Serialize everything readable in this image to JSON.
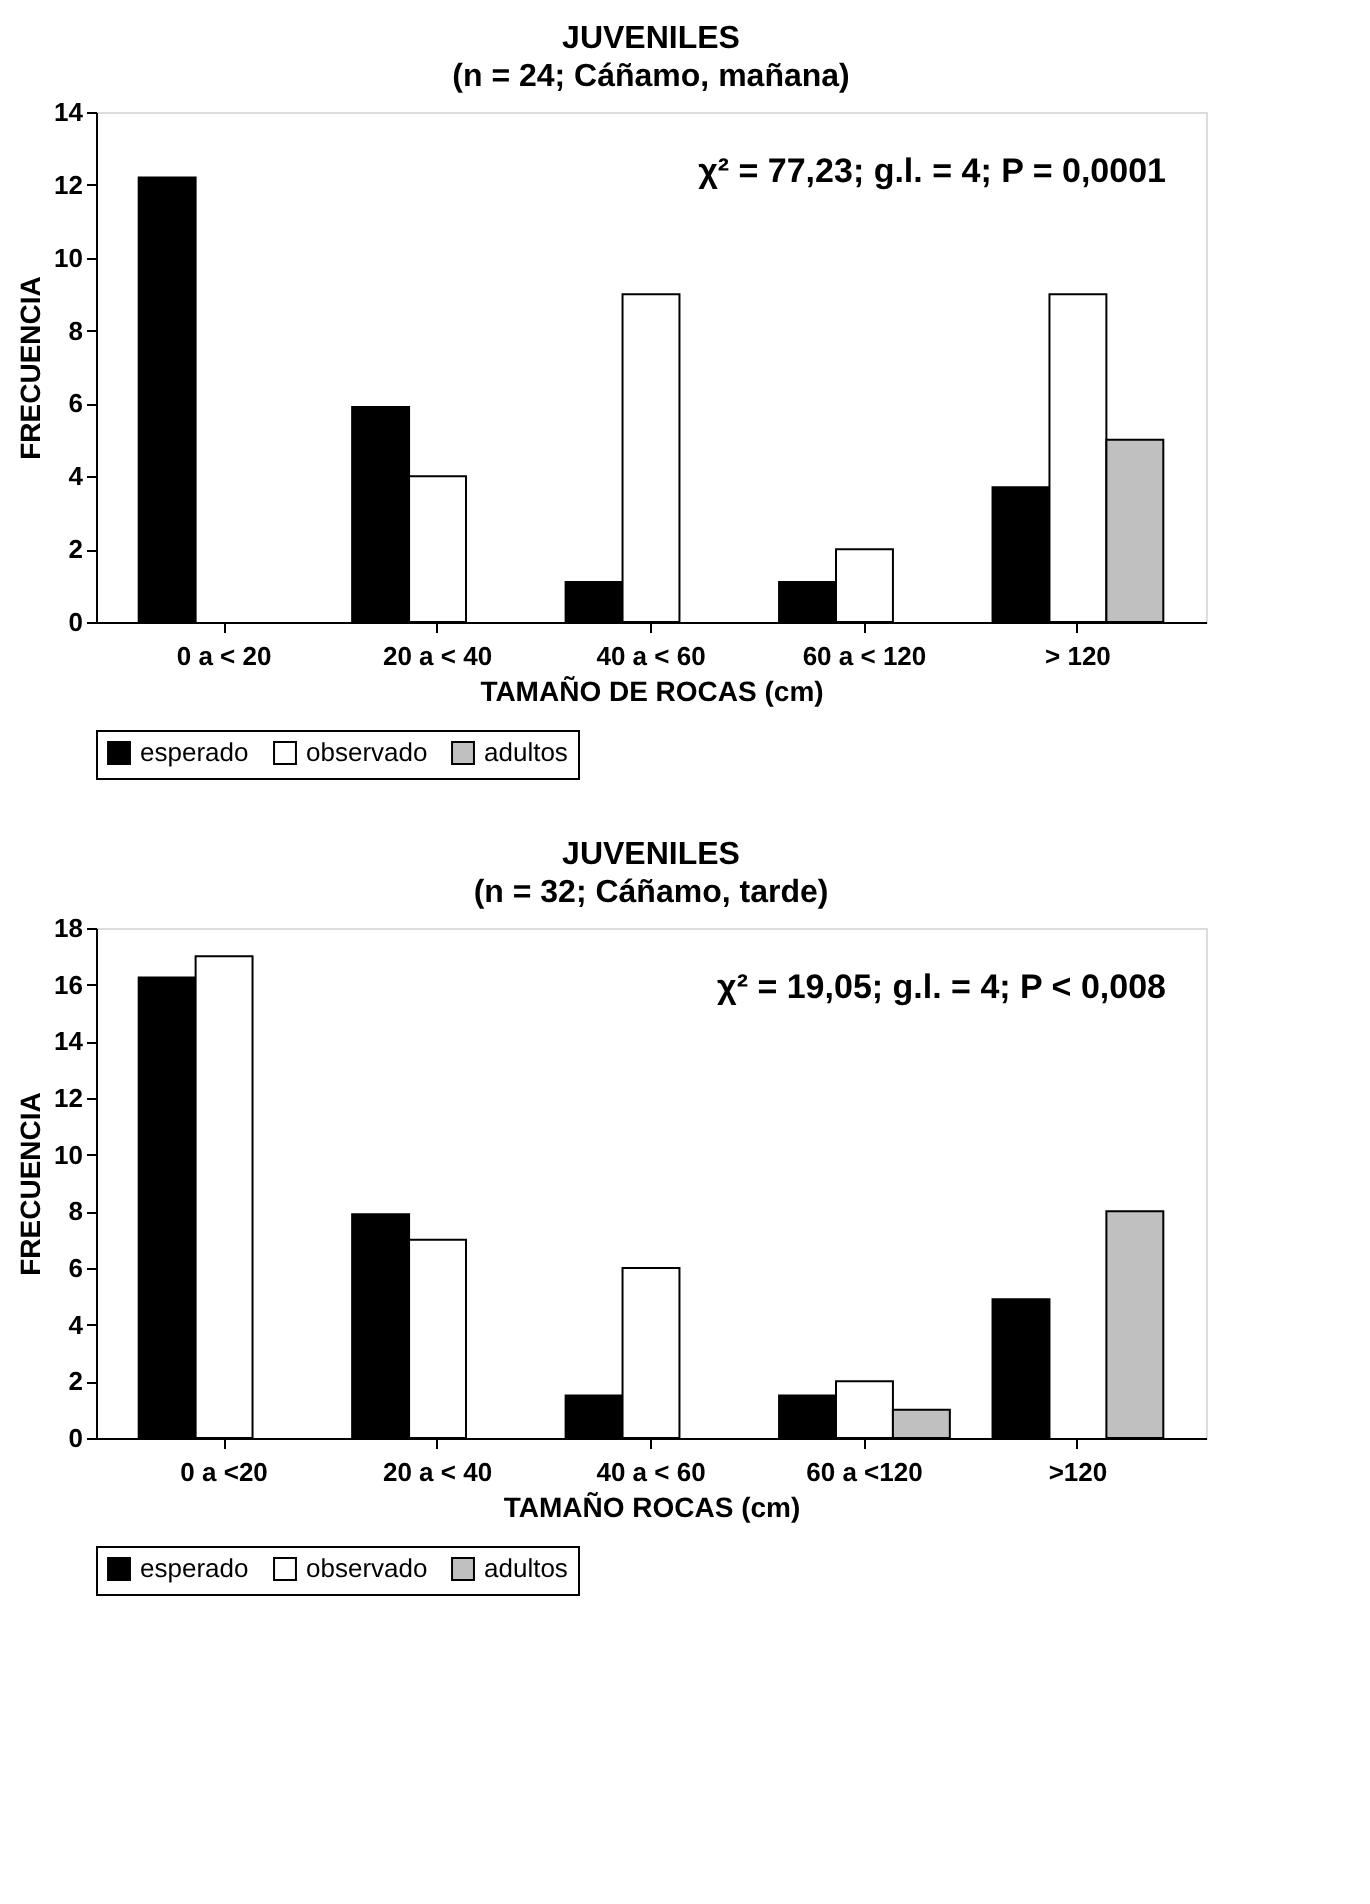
{
  "chart_data": [
    {
      "type": "bar",
      "title": "JUVENILES",
      "subtitle": "(n = 24; Cáñamo, mañana)",
      "xlabel": "TAMAÑO DE ROCAS (cm)",
      "ylabel": "FRECUENCIA",
      "categories": [
        "0 a < 20",
        "20 a < 40",
        "40 a < 60",
        "60 a < 120",
        "> 120"
      ],
      "series": [
        {
          "name": "esperado",
          "color": "#000000",
          "values": [
            12.2,
            5.9,
            1.1,
            1.1,
            3.7
          ]
        },
        {
          "name": "observado",
          "color": "#ffffff",
          "values": [
            null,
            4,
            9,
            2,
            9
          ]
        },
        {
          "name": "adultos",
          "color": "#c0c0c0",
          "values": [
            null,
            null,
            null,
            null,
            5
          ]
        }
      ],
      "ylim": [
        0,
        14
      ],
      "yticks": [
        0,
        2,
        4,
        6,
        8,
        10,
        12,
        14
      ],
      "grid": false,
      "legend": "bottom",
      "annotations": [
        "χ² = 77,23; g.l. = 4; P = 0,0001"
      ]
    },
    {
      "type": "bar",
      "title": "JUVENILES",
      "subtitle": "(n = 32; Cáñamo, tarde)",
      "xlabel": "TAMAÑO ROCAS (cm)",
      "ylabel": "FRECUENCIA",
      "categories": [
        "0 a <20",
        "20 a < 40",
        "40 a < 60",
        "60 a <120",
        ">120"
      ],
      "series": [
        {
          "name": "esperado",
          "color": "#000000",
          "values": [
            16.25,
            7.9,
            1.5,
            1.5,
            4.9
          ]
        },
        {
          "name": "observado",
          "color": "#ffffff",
          "values": [
            17,
            7,
            6,
            2,
            null
          ]
        },
        {
          "name": "adultos",
          "color": "#c0c0c0",
          "values": [
            null,
            null,
            null,
            1,
            8
          ]
        }
      ],
      "ylim": [
        0,
        18
      ],
      "yticks": [
        0,
        2,
        4,
        6,
        8,
        10,
        12,
        14,
        16,
        18
      ],
      "grid": false,
      "legend": "bottom",
      "annotations": [
        "χ² = 19,05; g.l. = 4; P < 0,008"
      ]
    }
  ]
}
